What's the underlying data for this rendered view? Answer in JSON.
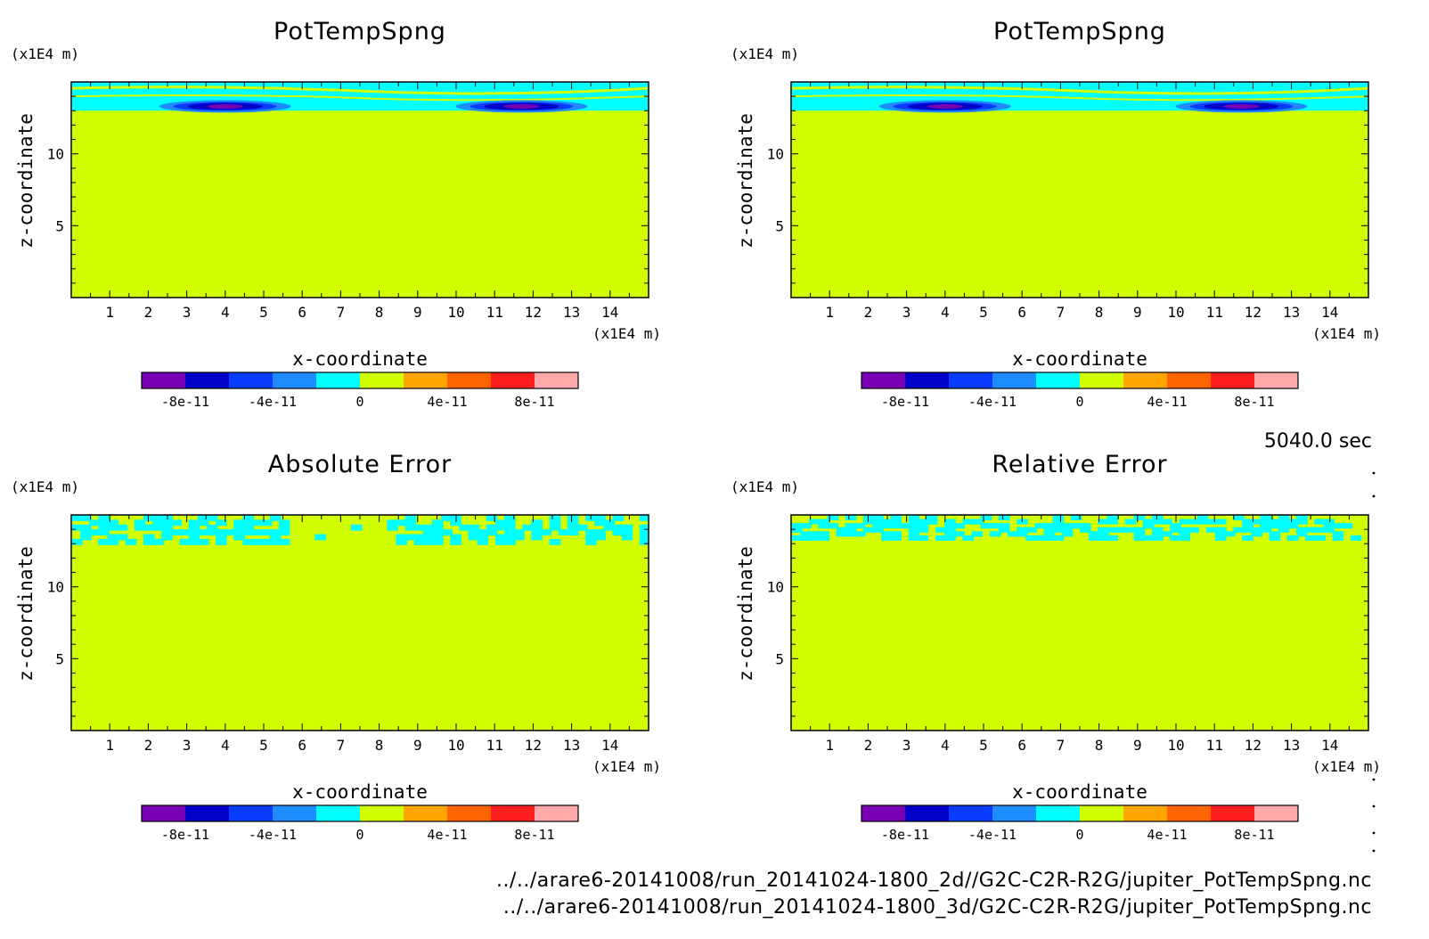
{
  "time_label": "5040.0 sec",
  "files": [
    "../../arare6-20141008/run_20141024-1800_2d//G2C-C2R-R2G/jupiter_PotTempSpng.nc",
    "../../arare6-20141008/run_20141024-1800_3d/G2C-C2R-R2G/jupiter_PotTempSpng.nc"
  ],
  "colorbar": {
    "colors": [
      "#7a00b4",
      "#0000c8",
      "#0a3cff",
      "#1e8cff",
      "#00ffff",
      "#d2ff00",
      "#ffa500",
      "#ff6400",
      "#ff1e1e",
      "#ffaaaa"
    ],
    "tick_labels": [
      "-8e-11",
      "-4e-11",
      "0",
      "4e-11",
      "8e-11"
    ],
    "tick_values": [
      -8e-11,
      -4e-11,
      0,
      4e-11,
      8e-11
    ],
    "range": [
      -1e-10,
      1e-10
    ]
  },
  "chart_data": [
    {
      "type": "heatmap",
      "title": "PotTempSpng",
      "xlabel": "x-coordinate",
      "ylabel": "z-coordinate",
      "x_unit": "(x1E4 m)",
      "y_unit": "(x1E4 m)",
      "xlim": [
        0,
        15
      ],
      "ylim": [
        0,
        15
      ],
      "x_ticks": [
        1,
        2,
        3,
        4,
        5,
        6,
        7,
        8,
        9,
        10,
        11,
        12,
        13,
        14
      ],
      "y_ticks": [
        5,
        10
      ],
      "background_value": 0,
      "features": [
        {
          "kind": "band",
          "z_range": [
            13,
            15
          ],
          "value": "cyan"
        },
        {
          "kind": "blob",
          "x_center": 4,
          "z_center": 13.3,
          "value": "-8e-11"
        },
        {
          "kind": "blob",
          "x_center": 11.7,
          "z_center": 13.3,
          "value": "-8e-11"
        }
      ]
    },
    {
      "type": "heatmap",
      "title": "PotTempSpng",
      "xlabel": "x-coordinate",
      "ylabel": "z-coordinate",
      "x_unit": "(x1E4 m)",
      "y_unit": "(x1E4 m)",
      "xlim": [
        0,
        15
      ],
      "ylim": [
        0,
        15
      ],
      "x_ticks": [
        1,
        2,
        3,
        4,
        5,
        6,
        7,
        8,
        9,
        10,
        11,
        12,
        13,
        14
      ],
      "y_ticks": [
        5,
        10
      ],
      "background_value": 0,
      "features": [
        {
          "kind": "band",
          "z_range": [
            13,
            15
          ],
          "value": "cyan"
        },
        {
          "kind": "blob",
          "x_center": 4,
          "z_center": 13.3,
          "value": "-8e-11"
        },
        {
          "kind": "blob",
          "x_center": 11.7,
          "z_center": 13.3,
          "value": "-8e-11"
        }
      ]
    },
    {
      "type": "heatmap",
      "title": "Absolute Error",
      "xlabel": "x-coordinate",
      "ylabel": "z-coordinate",
      "x_unit": "(x1E4 m)",
      "y_unit": "(x1E4 m)",
      "xlim": [
        0,
        15
      ],
      "ylim": [
        0,
        15
      ],
      "x_ticks": [
        1,
        2,
        3,
        4,
        5,
        6,
        7,
        8,
        9,
        10,
        11,
        12,
        13,
        14
      ],
      "y_ticks": [
        5,
        10
      ],
      "background_value": 0,
      "features": [
        {
          "kind": "patchy-band",
          "z_range": [
            13,
            15
          ],
          "value": "cyan"
        }
      ]
    },
    {
      "type": "heatmap",
      "title": "Relative Error",
      "xlabel": "x-coordinate",
      "ylabel": "z-coordinate",
      "x_unit": "(x1E4 m)",
      "y_unit": "(x1E4 m)",
      "xlim": [
        0,
        15
      ],
      "ylim": [
        0,
        15
      ],
      "x_ticks": [
        1,
        2,
        3,
        4,
        5,
        6,
        7,
        8,
        9,
        10,
        11,
        12,
        13,
        14
      ],
      "y_ticks": [
        5,
        10
      ],
      "background_value": 0,
      "features": [
        {
          "kind": "patchy-band",
          "z_range": [
            13.3,
            15
          ],
          "value": "cyan"
        }
      ]
    }
  ]
}
